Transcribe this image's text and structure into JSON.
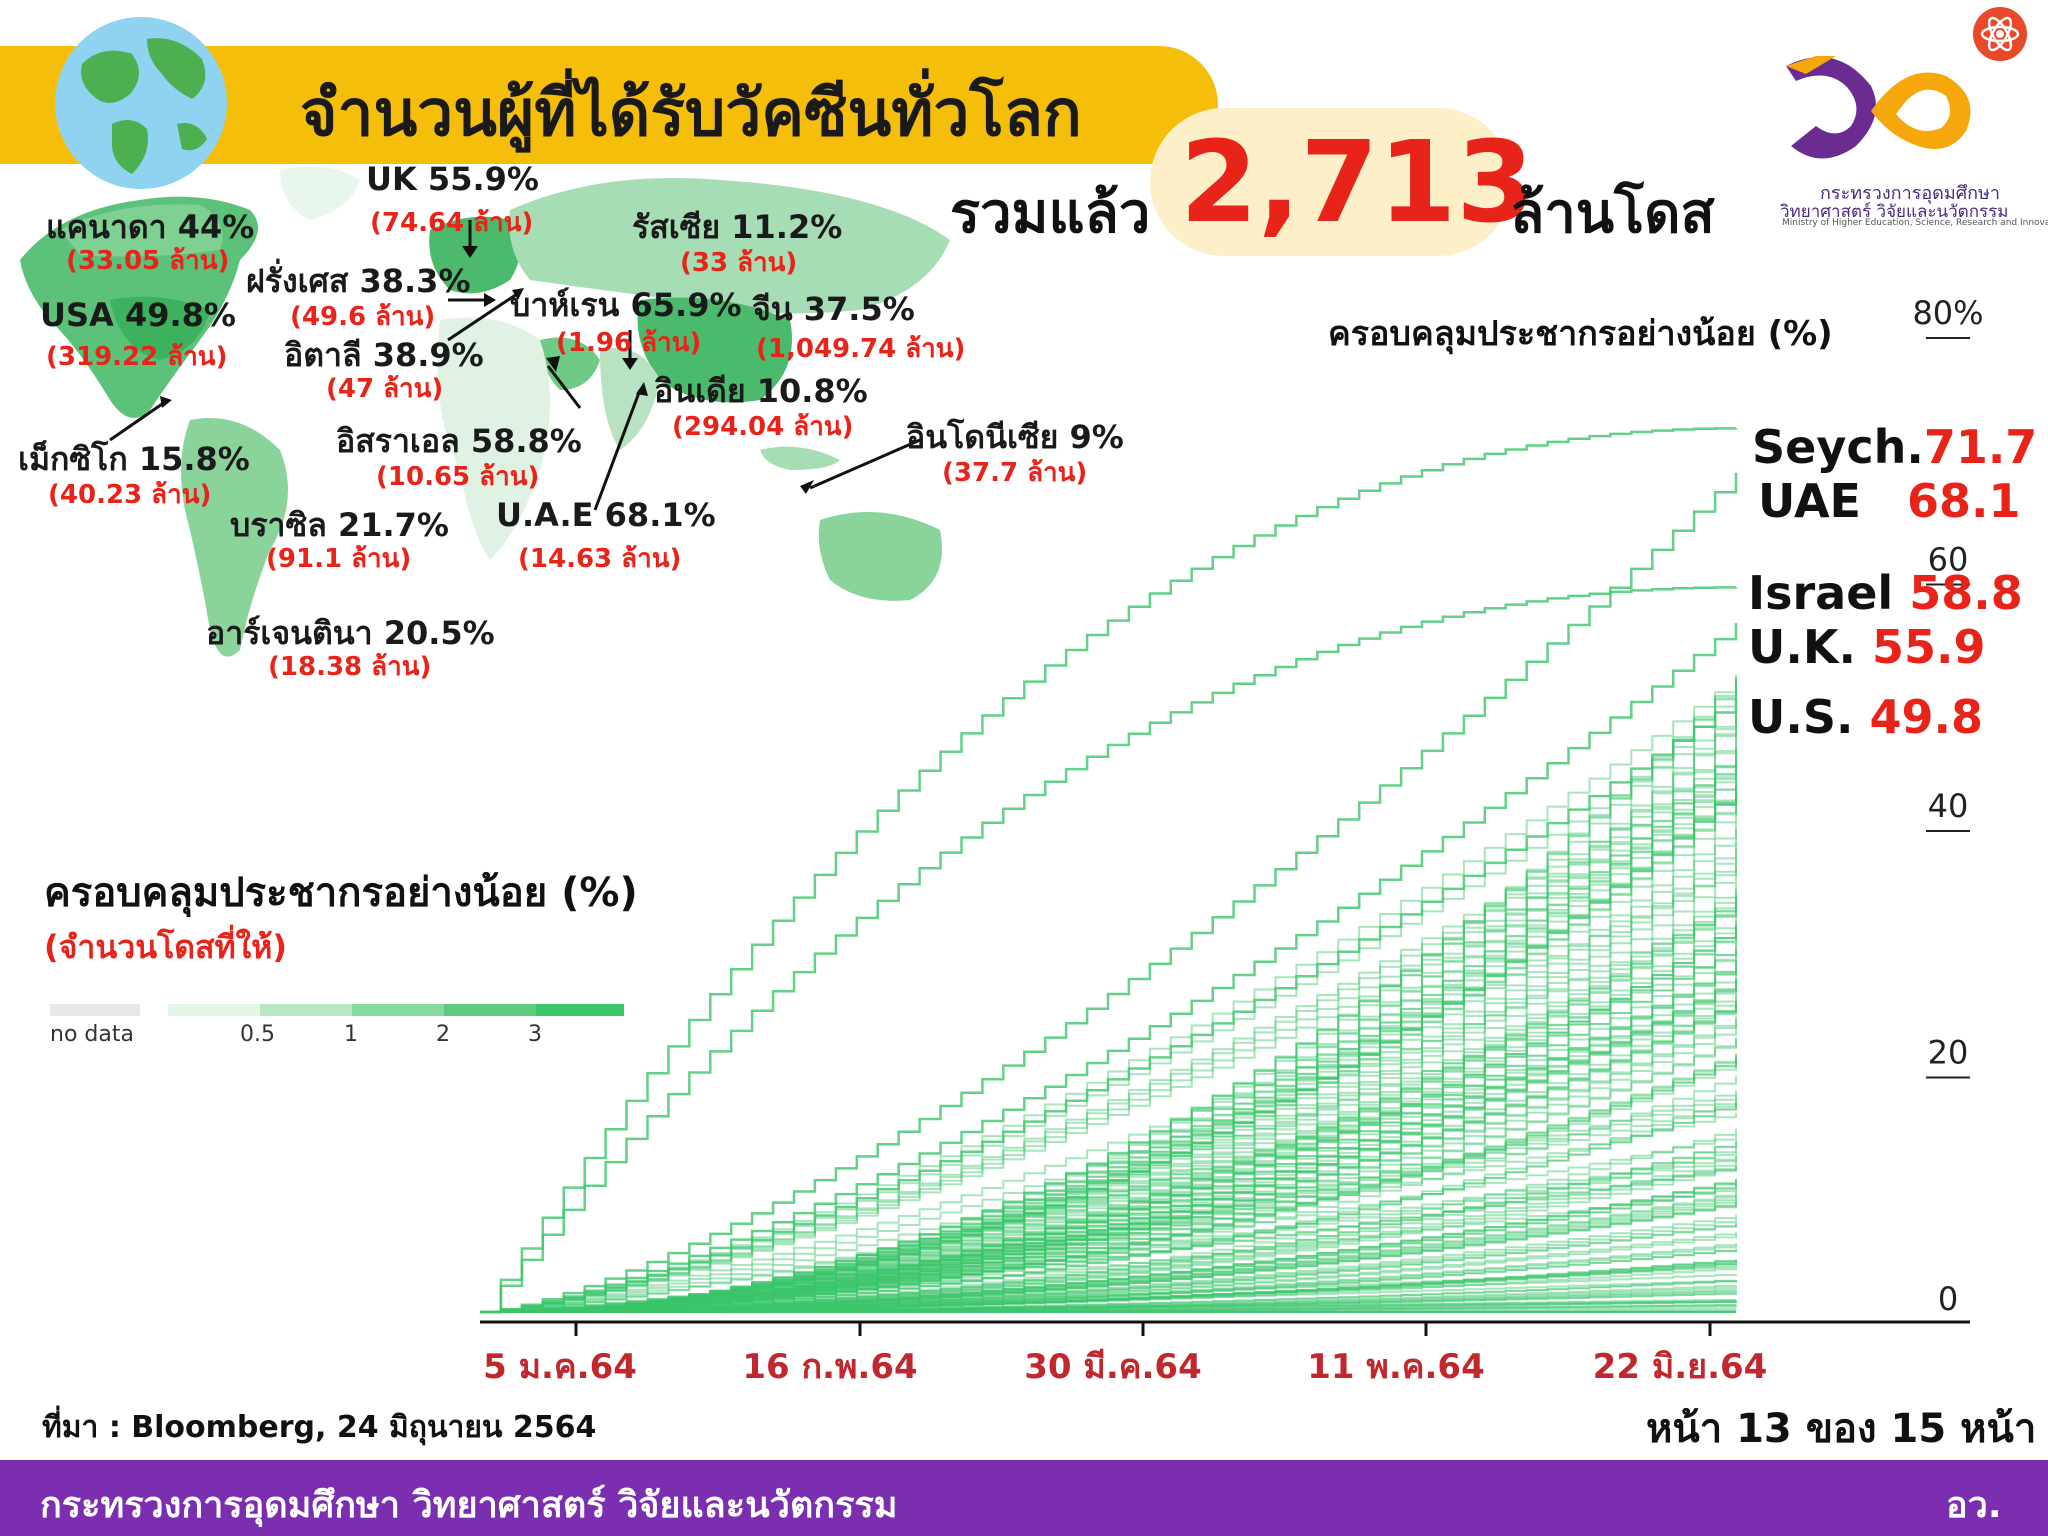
{
  "header": {
    "title": "จำนวนผู้ที่ได้รับวัคซีนทั่วโลก",
    "total_prefix": "รวมแล้ว",
    "total_number": "2,713",
    "total_unit": "ล้านโดส"
  },
  "logo": {
    "line1": "กระทรวงการอุดมศึกษา",
    "line2": "วิทยาศาสตร์ วิจัยและนวัตกรรม",
    "line3": "Ministry of Higher Education, Science, Research and Innovation"
  },
  "map_labels": [
    {
      "name": "UK 55.9%",
      "doses": "(74.64 ล้าน)"
    },
    {
      "name": "แคนาดา 44%",
      "doses": "(33.05 ล้าน)"
    },
    {
      "name": "รัสเซีย 11.2%",
      "doses": "(33 ล้าน)"
    },
    {
      "name": "ฝรั่งเศส 38.3%",
      "doses": "(49.6 ล้าน)"
    },
    {
      "name": "USA 49.8%",
      "doses": "(319.22 ล้าน)"
    },
    {
      "name": "บาห์เรน 65.9%",
      "doses": "(1.96 ล้าน)"
    },
    {
      "name": "จีน 37.5%",
      "doses": "(1,049.74 ล้าน)"
    },
    {
      "name": "อิตาลี 38.9%",
      "doses": "(47 ล้าน)"
    },
    {
      "name": "อินเดีย 10.8%",
      "doses": "(294.04 ล้าน)"
    },
    {
      "name": "อิสราเอล 58.8%",
      "doses": "(10.65 ล้าน)"
    },
    {
      "name": "อินโดนีเซีย 9%",
      "doses": "(37.7 ล้าน)"
    },
    {
      "name": "เม็กซิโก 15.8%",
      "doses": "(40.23 ล้าน)"
    },
    {
      "name": "บราซิล 21.7%",
      "doses": "(91.1 ล้าน)"
    },
    {
      "name": "U.A.E 68.1%",
      "doses": "(14.63 ล้าน)"
    },
    {
      "name": "อาร์เจนตินา 20.5%",
      "doses": "(18.38 ล้าน)"
    }
  ],
  "legend": {
    "title": "ครอบคลุมประชากรอย่างน้อย (%)",
    "subtitle": "(จำนวนโดสที่ให้)",
    "no_data": "no data",
    "ticks": [
      "0.5",
      "1",
      "2",
      "3"
    ]
  },
  "chart_title": "ครอบคลุมประชากรอย่างน้อย (%)",
  "colors": {
    "banner": "#f5be0b",
    "line_green": "#3cc66a",
    "accent_red": "#e8231a",
    "footer": "#7b2fb0"
  },
  "chart_data": {
    "type": "line",
    "x_ticks": [
      "5 ม.ค.64",
      "16 ก.พ.64",
      "30 มี.ค.64",
      "11 พ.ค.64",
      "22 มิ.ย.64"
    ],
    "y_ticks": [
      "0",
      "20",
      "40",
      "60",
      "80%"
    ],
    "ylim": [
      0,
      80
    ],
    "grid": false,
    "series": [
      {
        "name": "Seych.",
        "value": 71.7
      },
      {
        "name": "UAE",
        "value": 68.1
      },
      {
        "name": "Israel",
        "value": 58.8
      },
      {
        "name": "U.K.",
        "value": 55.9
      },
      {
        "name": "U.S.",
        "value": 49.8
      }
    ]
  },
  "right_labels": [
    {
      "name": "Seych.",
      "value": "71.7"
    },
    {
      "name": "UAE",
      "value": "68.1"
    },
    {
      "name": "Israel",
      "value": "58.8"
    },
    {
      "name": "U.K.",
      "value": "55.9"
    },
    {
      "name": "U.S.",
      "value": "49.8"
    }
  ],
  "source": "ที่มา : Bloomberg, 24 มิถุนายน 2564",
  "page": "หน้า 13 ของ 15 หน้า",
  "footer": {
    "text": "กระทรวงการอุดมศึกษา วิทยาศาสตร์ วิจัยและนวัตกรรม",
    "abbr": "อว."
  }
}
